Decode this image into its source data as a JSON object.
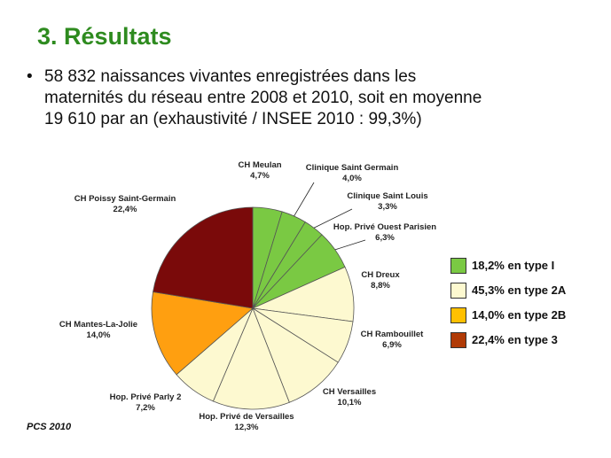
{
  "title": "3. Résultats",
  "bullet": {
    "symbol": "•",
    "lines": [
      "58 832 naissances vivantes enregistrées dans les",
      "maternités du réseau entre 2008 et 2010, soit en moyenne",
      "19 610 par an (exhaustivité  / INSEE 2010 : 99,3%)"
    ]
  },
  "chart_data": {
    "type": "pie",
    "slices": [
      {
        "label": "CH Meulan",
        "value_label": "4,7%",
        "value": 4.7,
        "color": "#7ac943"
      },
      {
        "label": "Clinique Saint Germain",
        "value_label": "4,0%",
        "value": 4.0,
        "color": "#7ac943"
      },
      {
        "label": "Clinique Saint Louis",
        "value_label": "3,3%",
        "value": 3.3,
        "color": "#7ac943"
      },
      {
        "label": "Hop. Privé Ouest Parisien",
        "value_label": "6,3%",
        "value": 6.3,
        "color": "#7ac943"
      },
      {
        "label": "CH Dreux",
        "value_label": "8,8%",
        "value": 8.8,
        "color": "#fdf9d0"
      },
      {
        "label": "CH Rambouillet",
        "value_label": "6,9%",
        "value": 6.9,
        "color": "#fdf9d0"
      },
      {
        "label": "CH Versailles",
        "value_label": "10,1%",
        "value": 10.1,
        "color": "#fdf9d0"
      },
      {
        "label": "Hop. Privé de Versailles",
        "value_label": "12,3%",
        "value": 12.3,
        "color": "#fdf9d0"
      },
      {
        "label": "Hop. Privé Parly 2",
        "value_label": "7,2%",
        "value": 7.2,
        "color": "#fdf9d0"
      },
      {
        "label": "CH Mantes-La-Jolie",
        "value_label": "14,0%",
        "value": 14.0,
        "color": "#ff9f10"
      },
      {
        "label": "CH Poissy Saint-Germain",
        "value_label": "22,4%",
        "value": 22.4,
        "color": "#7a0a0a"
      }
    ]
  },
  "legend": [
    {
      "text": "18,2% en type I",
      "color": "#7ac943"
    },
    {
      "text": "45,3% en type 2A",
      "color": "#fdf9d0"
    },
    {
      "text": "14,0% en type 2B",
      "color": "#ffc000"
    },
    {
      "text": "22,4% en type 3",
      "color": "#b03a06"
    }
  ],
  "footer": "PCS 2010"
}
